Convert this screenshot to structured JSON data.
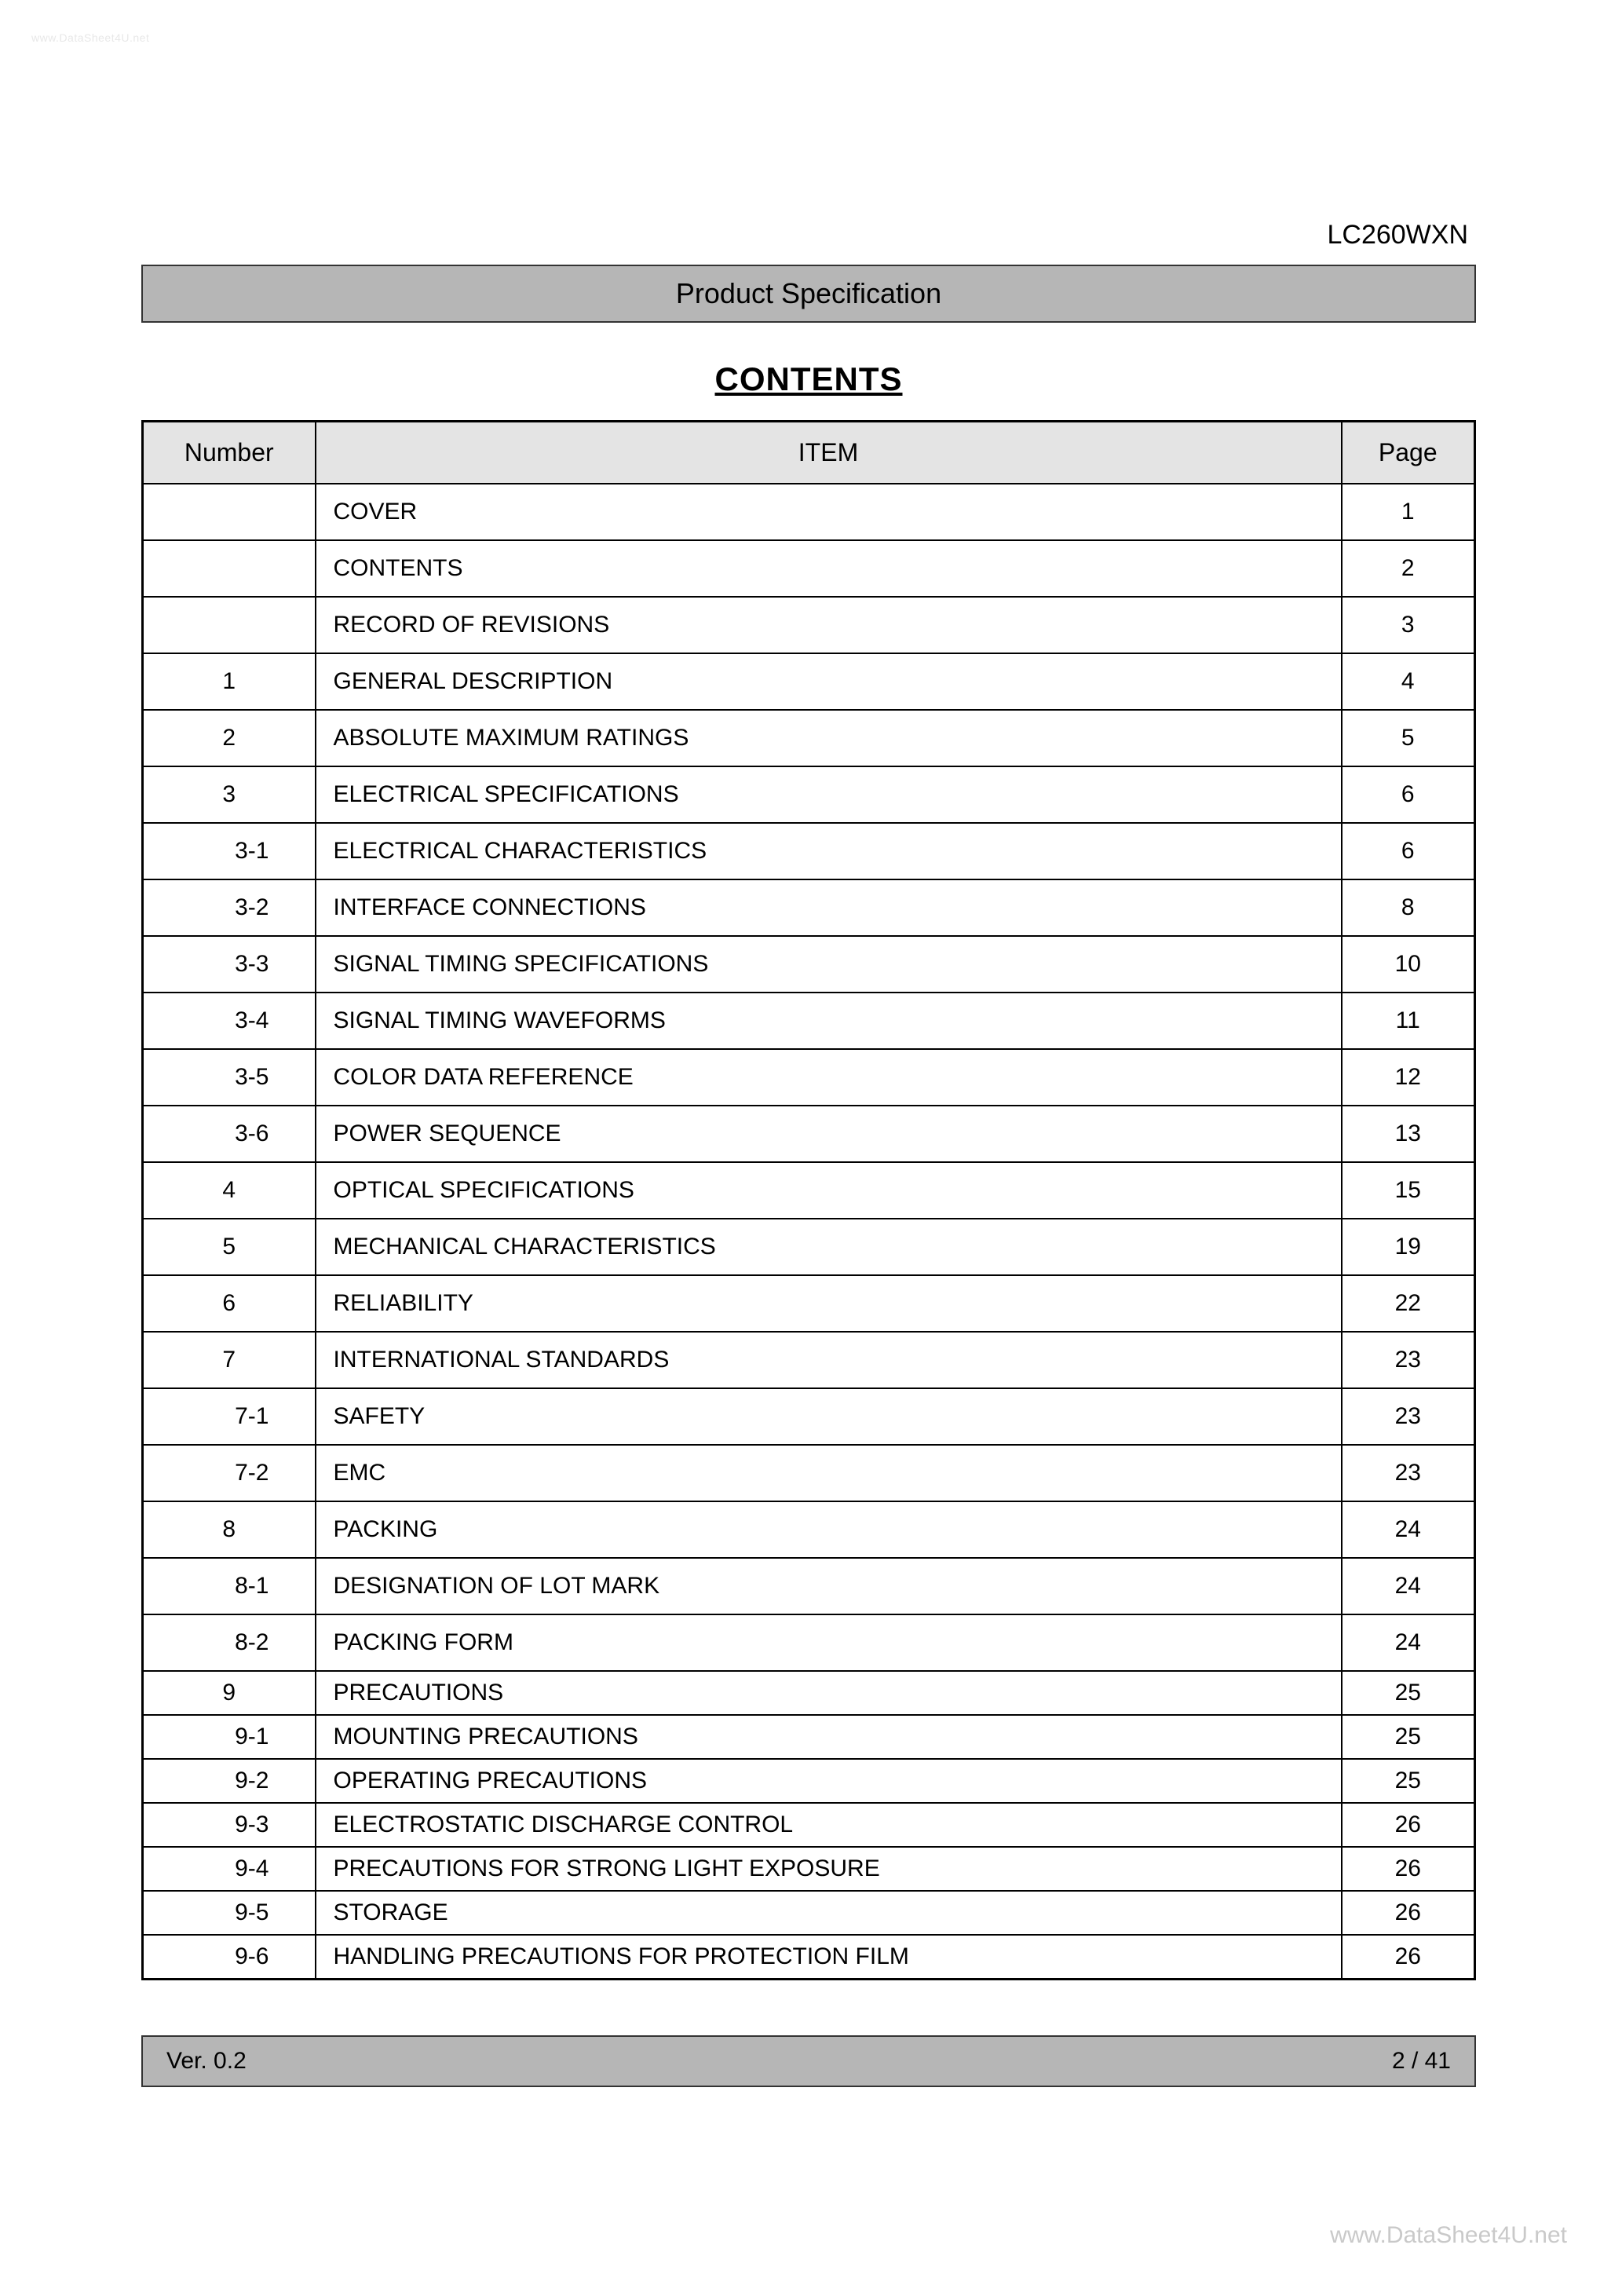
{
  "watermark_top": "www.DataSheet4U.net",
  "watermark_bottom": "www.DataSheet4U.net",
  "model": "LC260WXN",
  "title_bar": "Product Specification",
  "contents_heading": "CONTENTS",
  "columns": {
    "number": "Number",
    "item": "ITEM",
    "page": "Page"
  },
  "rows": [
    {
      "num": "",
      "sub": false,
      "item": "COVER",
      "page": "1",
      "compact": false
    },
    {
      "num": "",
      "sub": false,
      "item": "CONTENTS",
      "page": "2",
      "compact": false
    },
    {
      "num": "",
      "sub": false,
      "item": "RECORD OF REVISIONS",
      "page": "3",
      "compact": false
    },
    {
      "num": "1",
      "sub": false,
      "item": "GENERAL DESCRIPTION",
      "page": "4",
      "compact": false
    },
    {
      "num": "2",
      "sub": false,
      "item": "ABSOLUTE MAXIMUM RATINGS",
      "page": "5",
      "compact": false
    },
    {
      "num": "3",
      "sub": false,
      "item": "ELECTRICAL SPECIFICATIONS",
      "page": "6",
      "compact": false
    },
    {
      "num": "3-1",
      "sub": true,
      "item": "ELECTRICAL CHARACTERISTICS",
      "page": "6",
      "compact": false
    },
    {
      "num": "3-2",
      "sub": true,
      "item": "INTERFACE CONNECTIONS",
      "page": "8",
      "compact": false
    },
    {
      "num": "3-3",
      "sub": true,
      "item": "SIGNAL TIMING SPECIFICATIONS",
      "page": "10",
      "compact": false
    },
    {
      "num": "3-4",
      "sub": true,
      "item": "SIGNAL TIMING WAVEFORMS",
      "page": "11",
      "compact": false
    },
    {
      "num": "3-5",
      "sub": true,
      "item": "COLOR DATA REFERENCE",
      "page": "12",
      "compact": false
    },
    {
      "num": "3-6",
      "sub": true,
      "item": "POWER SEQUENCE",
      "page": "13",
      "compact": false
    },
    {
      "num": "4",
      "sub": false,
      "item": "OPTICAL SPECIFICATIONS",
      "page": "15",
      "compact": false
    },
    {
      "num": "5",
      "sub": false,
      "item": "MECHANICAL CHARACTERISTICS",
      "page": "19",
      "compact": false
    },
    {
      "num": "6",
      "sub": false,
      "item": "RELIABILITY",
      "page": "22",
      "compact": false
    },
    {
      "num": "7",
      "sub": false,
      "item": "INTERNATIONAL STANDARDS",
      "page": "23",
      "compact": false
    },
    {
      "num": "7-1",
      "sub": true,
      "item": "SAFETY",
      "page": "23",
      "compact": false
    },
    {
      "num": "7-2",
      "sub": true,
      "item": "EMC",
      "page": "23",
      "compact": false
    },
    {
      "num": "8",
      "sub": false,
      "item": "PACKING",
      "page": "24",
      "compact": false
    },
    {
      "num": "8-1",
      "sub": true,
      "item": "DESIGNATION OF LOT MARK",
      "page": "24",
      "compact": false
    },
    {
      "num": "8-2",
      "sub": true,
      "item": "PACKING FORM",
      "page": "24",
      "compact": false
    },
    {
      "num": "9",
      "sub": false,
      "item": "PRECAUTIONS",
      "page": "25",
      "compact": true
    },
    {
      "num": "9-1",
      "sub": true,
      "item": "MOUNTING PRECAUTIONS",
      "page": "25",
      "compact": true
    },
    {
      "num": "9-2",
      "sub": true,
      "item": "OPERATING PRECAUTIONS",
      "page": "25",
      "compact": true
    },
    {
      "num": "9-3",
      "sub": true,
      "item": "ELECTROSTATIC DISCHARGE CONTROL",
      "page": "26",
      "compact": true
    },
    {
      "num": "9-4",
      "sub": true,
      "item": "PRECAUTIONS FOR STRONG LIGHT EXPOSURE",
      "page": "26",
      "compact": true
    },
    {
      "num": "9-5",
      "sub": true,
      "item": "STORAGE",
      "page": "26",
      "compact": true
    },
    {
      "num": "9-6",
      "sub": true,
      "item": "HANDLING PRECAUTIONS FOR PROTECTION FILM",
      "page": "26",
      "compact": true
    }
  ],
  "footer": {
    "version": "Ver. 0.2",
    "page_of": "2 / 41"
  },
  "colors": {
    "header_bg": "#e4e4e4",
    "bar_bg": "#b6b6b6",
    "border": "#000000",
    "text": "#000000",
    "watermark": "#c9c9c9"
  }
}
